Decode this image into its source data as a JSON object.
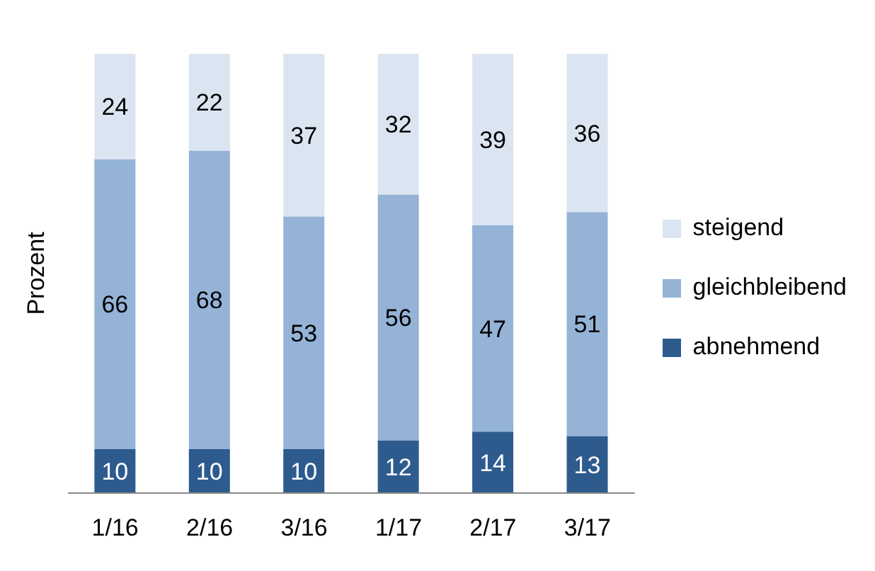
{
  "chart_data": {
    "type": "bar",
    "stacked": true,
    "ylabel": "Prozent",
    "categories": [
      "1/16",
      "2/16",
      "3/16",
      "1/17",
      "2/17",
      "3/17"
    ],
    "series": [
      {
        "name": "abnehmend",
        "color": "#2e5b8e",
        "values": [
          10,
          10,
          10,
          12,
          14,
          13
        ]
      },
      {
        "name": "gleichbleibend",
        "color": "#95b3d7",
        "values": [
          66,
          68,
          53,
          56,
          47,
          51
        ]
      },
      {
        "name": "steigend",
        "color": "#dbe5f1",
        "values": [
          24,
          22,
          37,
          32,
          39,
          36
        ]
      }
    ],
    "data_labels": true,
    "legend": "right",
    "grid": false
  }
}
